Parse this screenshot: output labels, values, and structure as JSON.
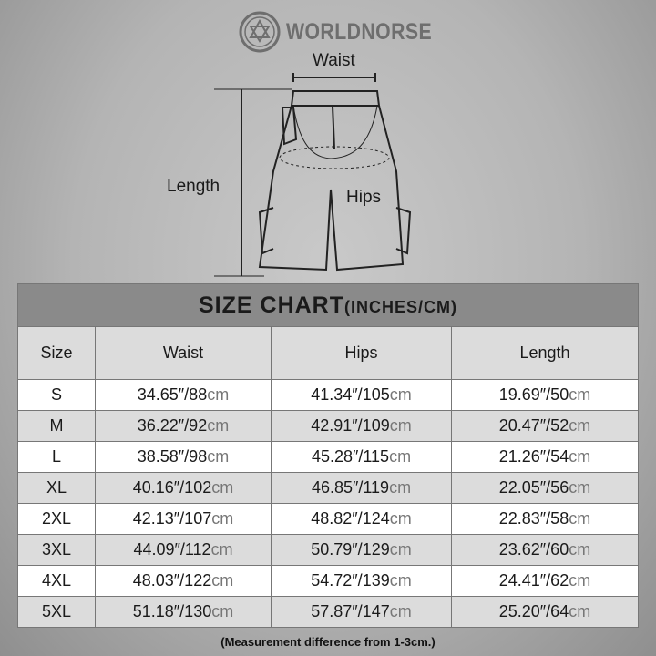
{
  "brand": "WORLDNORSE",
  "diagram": {
    "waist_label": "Waist",
    "length_label": "Length",
    "hips_label": "Hips"
  },
  "table": {
    "title": "SIZE CHART",
    "title_units": "(INCHES/CM)",
    "headers": [
      "Size",
      "Waist",
      "Hips",
      "Length"
    ],
    "rows": [
      {
        "size": "S",
        "waist": [
          "34.65″/88",
          "cm"
        ],
        "hips": [
          "41.34″/105",
          "cm"
        ],
        "length": [
          "19.69″/50",
          "cm"
        ]
      },
      {
        "size": "M",
        "waist": [
          "36.22″/92",
          "cm"
        ],
        "hips": [
          "42.91″/109",
          "cm"
        ],
        "length": [
          "20.47″/52",
          "cm"
        ]
      },
      {
        "size": "L",
        "waist": [
          "38.58″/98",
          "cm"
        ],
        "hips": [
          "45.28″/115",
          "cm"
        ],
        "length": [
          "21.26″/54",
          "cm"
        ]
      },
      {
        "size": "XL",
        "waist": [
          "40.16″/102",
          "cm"
        ],
        "hips": [
          "46.85″/119",
          "cm"
        ],
        "length": [
          "22.05″/56",
          "cm"
        ]
      },
      {
        "size": "2XL",
        "waist": [
          "42.13″/107",
          "cm"
        ],
        "hips": [
          "48.82″/124",
          "cm"
        ],
        "length": [
          "22.83″/58",
          "cm"
        ]
      },
      {
        "size": "3XL",
        "waist": [
          "44.09″/112",
          "cm"
        ],
        "hips": [
          "50.79″/129",
          "cm"
        ],
        "length": [
          "23.62″/60",
          "cm"
        ]
      },
      {
        "size": "4XL",
        "waist": [
          "48.03″/122",
          "cm"
        ],
        "hips": [
          "54.72″/139",
          "cm"
        ],
        "length": [
          "24.41″/62",
          "cm"
        ]
      },
      {
        "size": "5XL",
        "waist": [
          "51.18″/130",
          "cm"
        ],
        "hips": [
          "57.87″/147",
          "cm"
        ],
        "length": [
          "25.20″/64",
          "cm"
        ]
      }
    ]
  },
  "note": "(Measurement difference from 1-3cm.)",
  "colors": {
    "title_bar": "#8a8a8a",
    "alt_row": "#dcdcdc",
    "cm_text": "#777777"
  }
}
